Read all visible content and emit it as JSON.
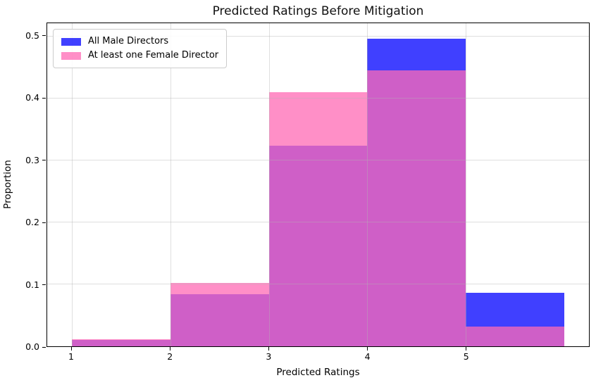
{
  "chart_data": {
    "type": "bar",
    "title": "Predicted Ratings Before Mitigation",
    "xlabel": "Predicted Ratings",
    "ylabel": "Proportion",
    "bin_edges": [
      1,
      2,
      3,
      4,
      5,
      6
    ],
    "xticks": [
      1,
      2,
      3,
      4,
      5
    ],
    "xtick_labels": [
      "1",
      "2",
      "3",
      "4",
      "5"
    ],
    "ytick_values": [
      0.0,
      0.1,
      0.2,
      0.3,
      0.4,
      0.5
    ],
    "ytick_labels": [
      "0.0",
      "0.1",
      "0.2",
      "0.3",
      "0.4",
      "0.5"
    ],
    "xlim": [
      0.75,
      6.25
    ],
    "ylim": [
      0,
      0.521
    ],
    "grid": true,
    "legend_position": "upper left",
    "series": [
      {
        "name": "All Male Directors",
        "color": "#0000ff",
        "alpha": 0.75,
        "values": [
          0.01,
          0.084,
          0.324,
          0.496,
          0.086
        ]
      },
      {
        "name": "At least one Female Director",
        "color": "#ff69b4",
        "alpha": 0.75,
        "values": [
          0.011,
          0.102,
          0.41,
          0.445,
          0.032
        ]
      }
    ],
    "overlap_color_observed": "#cf5fc7",
    "grid_color": "#b2b2b2"
  }
}
